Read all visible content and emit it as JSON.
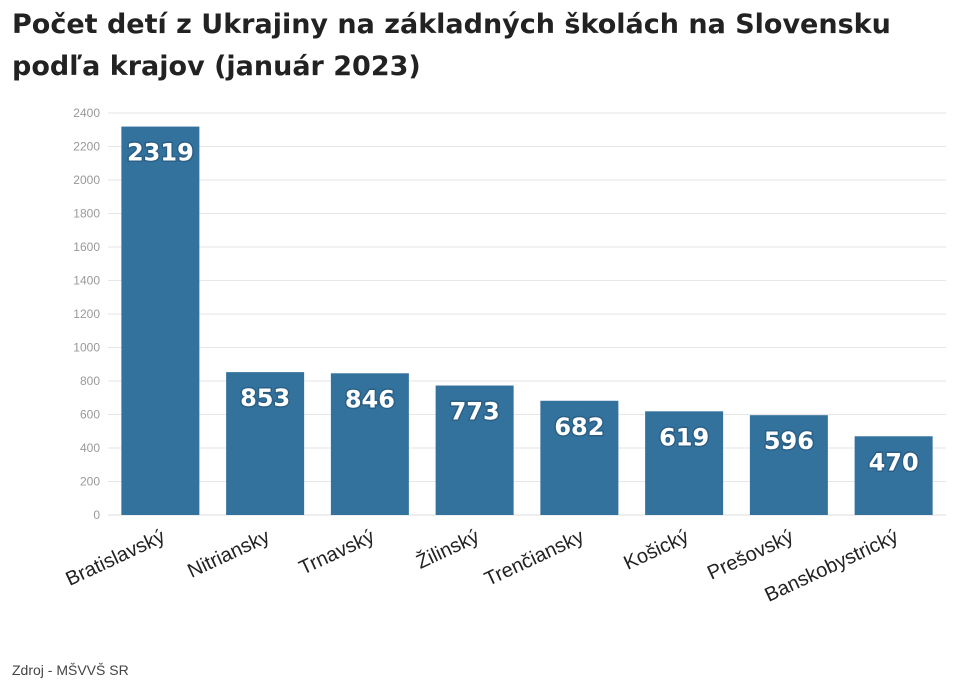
{
  "title": "Počet detí z Ukrajiny na základných školách na Slovensku podľa krajov (január 2023)",
  "source": "Zdroj - MŠVVŠ SR",
  "colors": {
    "bar": "#33729c",
    "grid": "#e6e6e6",
    "axis": "#dddddd"
  },
  "chart_data": {
    "type": "bar",
    "title": "Počet detí z Ukrajiny na základných školách na Slovensku podľa krajov (január 2023)",
    "categories": [
      "Bratislavský",
      "Nitriansky",
      "Trnavský",
      "Žilinský",
      "Trenčiansky",
      "Košický",
      "Prešovský",
      "Banskobystrický"
    ],
    "values": [
      2319,
      853,
      846,
      773,
      682,
      619,
      596,
      470
    ],
    "xlabel": "",
    "ylabel": "",
    "ylim": [
      0,
      2400
    ],
    "yticks": [
      0,
      200,
      400,
      600,
      800,
      1000,
      1200,
      1400,
      1600,
      1800,
      2000,
      2200,
      2400
    ],
    "grid": true,
    "legend": "none",
    "data_labels": true
  }
}
